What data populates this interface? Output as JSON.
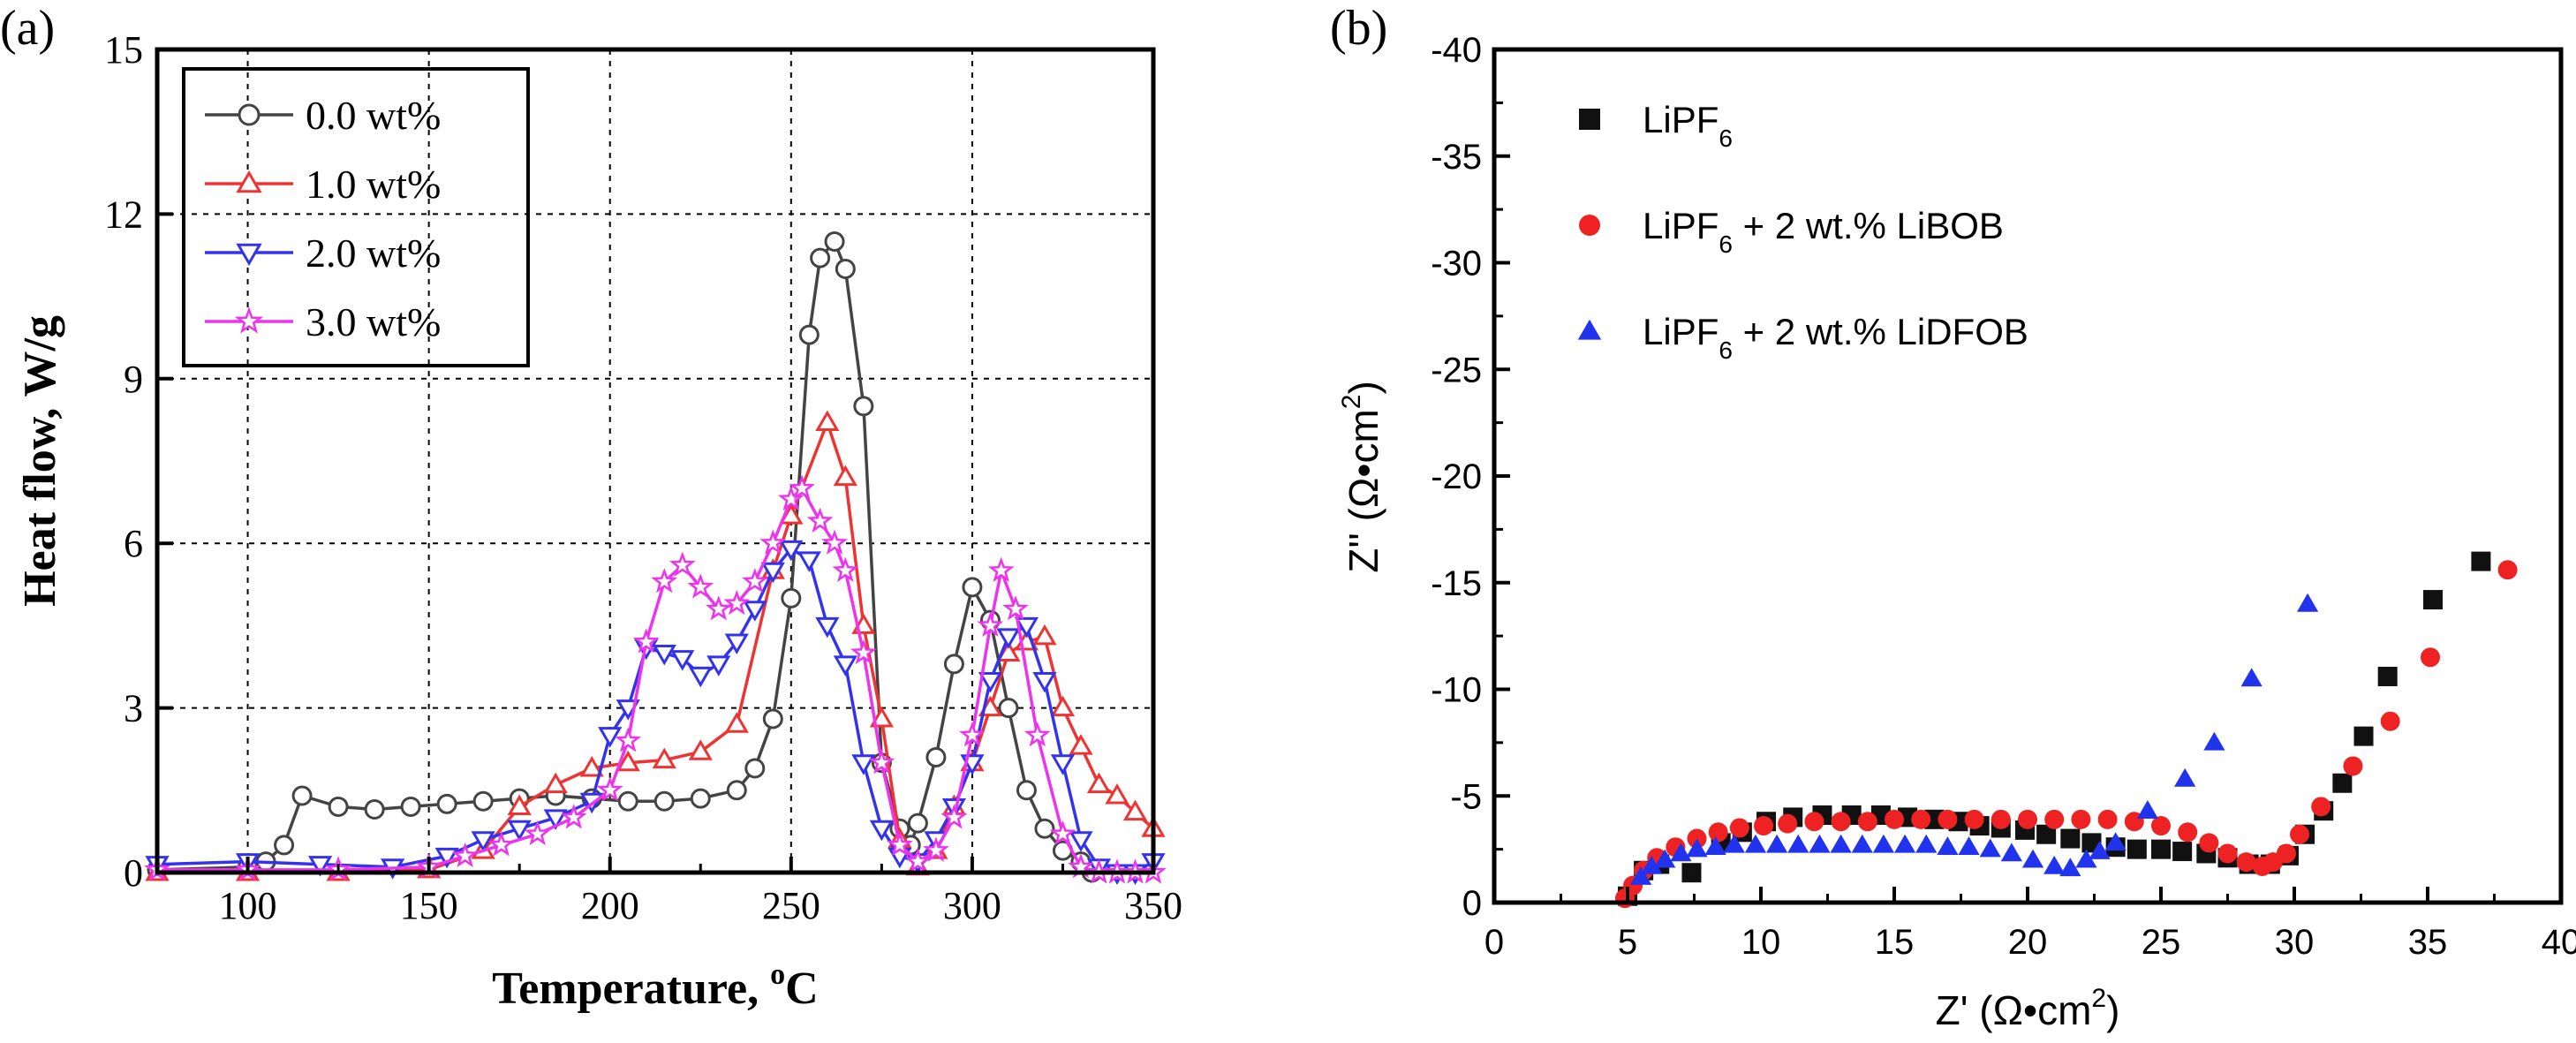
{
  "chart_data": [
    {
      "panel_label": "(a)",
      "type": "line",
      "xlabel": "Temperature, ",
      "xlabel_sup": "o",
      "xlabel_unit": "C",
      "ylabel": "Heat flow, W/g",
      "xlim": [
        75,
        350
      ],
      "ylim": [
        0,
        15
      ],
      "xticks": [
        100,
        150,
        200,
        250,
        300,
        350
      ],
      "yticks": [
        0,
        3,
        6,
        9,
        12,
        15
      ],
      "grid": true,
      "legend_position": "top-left",
      "series": [
        {
          "name": "0.0 wt%",
          "color": "#444444",
          "marker": "circle",
          "x": [
            75,
            100,
            105,
            110,
            115,
            125,
            135,
            145,
            155,
            165,
            175,
            185,
            195,
            205,
            215,
            225,
            235,
            240,
            245,
            250,
            255,
            258,
            262,
            265,
            270,
            275,
            280,
            283,
            285,
            290,
            295,
            300,
            305,
            310,
            315,
            320,
            325,
            330,
            333
          ],
          "y": [
            0.05,
            0.1,
            0.2,
            0.5,
            1.4,
            1.2,
            1.15,
            1.2,
            1.25,
            1.3,
            1.35,
            1.4,
            1.35,
            1.3,
            1.3,
            1.35,
            1.5,
            1.9,
            2.8,
            5.0,
            9.8,
            11.2,
            11.5,
            11.0,
            8.5,
            2.0,
            0.8,
            0.5,
            0.9,
            2.1,
            3.8,
            5.2,
            4.6,
            3.0,
            1.5,
            0.8,
            0.4,
            0.2,
            0.0
          ]
        },
        {
          "name": "1.0 wt%",
          "color": "#ee3333",
          "marker": "triangle-up",
          "x": [
            75,
            100,
            125,
            150,
            165,
            175,
            185,
            195,
            205,
            215,
            225,
            235,
            245,
            250,
            260,
            265,
            270,
            275,
            280,
            285,
            290,
            295,
            300,
            305,
            310,
            315,
            320,
            325,
            330,
            335,
            340,
            345,
            350
          ],
          "y": [
            0.0,
            0.0,
            0.0,
            0.05,
            0.4,
            1.2,
            1.6,
            1.9,
            2.0,
            2.05,
            2.2,
            2.7,
            5.5,
            6.5,
            8.2,
            7.2,
            4.5,
            2.8,
            0.6,
            0.1,
            0.4,
            1.2,
            2.0,
            3.0,
            4.0,
            4.2,
            4.3,
            3.0,
            2.3,
            1.6,
            1.4,
            1.1,
            0.8
          ]
        },
        {
          "name": "2.0 wt%",
          "color": "#3333ee",
          "marker": "triangle-down",
          "x": [
            75,
            100,
            120,
            140,
            155,
            165,
            175,
            185,
            195,
            200,
            205,
            210,
            215,
            220,
            225,
            230,
            235,
            240,
            245,
            250,
            255,
            260,
            265,
            270,
            275,
            280,
            285,
            290,
            295,
            300,
            305,
            310,
            315,
            320,
            325,
            330,
            335,
            340,
            345,
            350
          ],
          "y": [
            0.15,
            0.2,
            0.15,
            0.1,
            0.3,
            0.6,
            0.8,
            1.0,
            1.3,
            2.5,
            3.0,
            4.1,
            4.0,
            3.9,
            3.6,
            3.8,
            4.2,
            4.8,
            5.5,
            5.9,
            5.7,
            4.5,
            3.8,
            2.0,
            0.8,
            0.3,
            0.2,
            0.6,
            1.2,
            2.0,
            3.5,
            4.3,
            4.5,
            3.5,
            2.0,
            0.6,
            0.1,
            0.0,
            0.0,
            0.2
          ]
        },
        {
          "name": "3.0 wt%",
          "color": "#ee33ee",
          "marker": "star",
          "x": [
            75,
            100,
            125,
            150,
            160,
            170,
            180,
            190,
            200,
            205,
            210,
            215,
            220,
            225,
            230,
            235,
            240,
            245,
            250,
            253,
            258,
            262,
            265,
            270,
            275,
            280,
            285,
            290,
            295,
            300,
            305,
            308,
            312,
            318,
            325,
            330,
            335,
            340,
            345,
            350
          ],
          "y": [
            0.05,
            0.05,
            0.05,
            0.1,
            0.3,
            0.5,
            0.7,
            1.0,
            1.5,
            2.4,
            4.2,
            5.3,
            5.6,
            5.2,
            4.8,
            4.9,
            5.3,
            6.0,
            6.8,
            7.0,
            6.4,
            6.0,
            5.5,
            4.0,
            2.0,
            0.5,
            0.2,
            0.4,
            1.0,
            2.5,
            4.5,
            5.5,
            4.8,
            2.5,
            0.7,
            0.1,
            0.0,
            0.0,
            0.0,
            0.0
          ]
        }
      ]
    },
    {
      "panel_label": "(b)",
      "type": "scatter",
      "xlabel": "Z' (Ω•cm",
      "xlabel_sup": "2",
      "xlabel_end": ")",
      "ylabel": "Z'' (Ω•cm",
      "ylabel_sup": "2",
      "ylabel_end": ")",
      "xlim": [
        0,
        40
      ],
      "ylim": [
        0,
        -40
      ],
      "y_inverted": true,
      "xticks": [
        0,
        5,
        10,
        15,
        20,
        25,
        30,
        35,
        40
      ],
      "yticks": [
        0,
        -5,
        -10,
        -15,
        -20,
        -25,
        -30,
        -35,
        -40
      ],
      "grid": false,
      "legend_position": "top-left",
      "legend_sub": "6",
      "series": [
        {
          "name": "LiPF6",
          "name_main": "LiPF",
          "name_rest": "",
          "color": "#111111",
          "marker": "square",
          "x": [
            5.0,
            5.6,
            6.2,
            7.4,
            8.5,
            9.3,
            10.2,
            11.2,
            12.3,
            13.4,
            14.5,
            15.5,
            16.5,
            17.4,
            18.2,
            19.0,
            19.9,
            20.7,
            21.6,
            22.4,
            23.3,
            24.1,
            25.0,
            25.8,
            26.7,
            27.5,
            28.3,
            29.1,
            29.8,
            30.4,
            31.1,
            31.8,
            32.6,
            33.5,
            35.2,
            37.0
          ],
          "y": [
            -0.3,
            -1.5,
            -1.8,
            -1.4,
            -2.8,
            -3.3,
            -3.8,
            -4.0,
            -4.1,
            -4.1,
            -4.1,
            -4.0,
            -3.9,
            -3.8,
            -3.6,
            -3.5,
            -3.4,
            -3.2,
            -3.0,
            -2.8,
            -2.6,
            -2.5,
            -2.5,
            -2.4,
            -2.3,
            -2.1,
            -1.8,
            -1.8,
            -2.2,
            -3.2,
            -4.3,
            -5.6,
            -7.8,
            -10.6,
            -14.2,
            -16.0
          ]
        },
        {
          "name": "LiPF6 + 2 wt.% LiBOB",
          "name_main": "LiPF",
          "name_rest": " + 2 wt.% LiBOB",
          "color": "#ee2222",
          "marker": "circle",
          "x": [
            4.9,
            5.2,
            5.6,
            6.1,
            6.8,
            7.6,
            8.4,
            9.2,
            10.1,
            11.0,
            12.0,
            13.0,
            14.0,
            15.0,
            16.0,
            17.0,
            18.0,
            19.0,
            20.0,
            21.0,
            22.0,
            23.0,
            24.0,
            25.0,
            26.0,
            26.8,
            27.5,
            28.2,
            28.8,
            29.2,
            29.7,
            30.2,
            31.0,
            32.2,
            33.6,
            35.1,
            38.0
          ],
          "y": [
            -0.2,
            -0.8,
            -1.5,
            -2.1,
            -2.6,
            -3.0,
            -3.3,
            -3.5,
            -3.6,
            -3.7,
            -3.8,
            -3.8,
            -3.8,
            -3.9,
            -3.9,
            -3.9,
            -3.9,
            -3.9,
            -3.9,
            -3.9,
            -3.9,
            -3.9,
            -3.8,
            -3.6,
            -3.3,
            -2.8,
            -2.3,
            -1.9,
            -1.7,
            -1.9,
            -2.3,
            -3.2,
            -4.5,
            -6.4,
            -8.5,
            -11.5,
            -15.6
          ]
        },
        {
          "name": "LiPF6 + 2 wt.% LiDFOB",
          "name_main": "LiPF",
          "name_rest": " + 2 wt.% LiDFOB",
          "color": "#2233ee",
          "marker": "triangle-up",
          "x": [
            5.5,
            5.9,
            6.4,
            7.0,
            7.6,
            8.3,
            9.0,
            9.8,
            10.6,
            11.4,
            12.2,
            13.0,
            13.8,
            14.6,
            15.4,
            16.2,
            17.0,
            17.8,
            18.6,
            19.4,
            20.2,
            21.0,
            21.6,
            22.2,
            22.7,
            23.3,
            24.5,
            25.9,
            27.0,
            28.4,
            30.5
          ],
          "y": [
            -1.2,
            -1.7,
            -2.0,
            -2.3,
            -2.5,
            -2.6,
            -2.7,
            -2.7,
            -2.7,
            -2.7,
            -2.7,
            -2.7,
            -2.7,
            -2.7,
            -2.7,
            -2.7,
            -2.6,
            -2.6,
            -2.5,
            -2.3,
            -2.0,
            -1.7,
            -1.6,
            -2.0,
            -2.4,
            -2.8,
            -4.3,
            -5.8,
            -7.5,
            -10.5,
            -14.0
          ]
        }
      ]
    }
  ]
}
